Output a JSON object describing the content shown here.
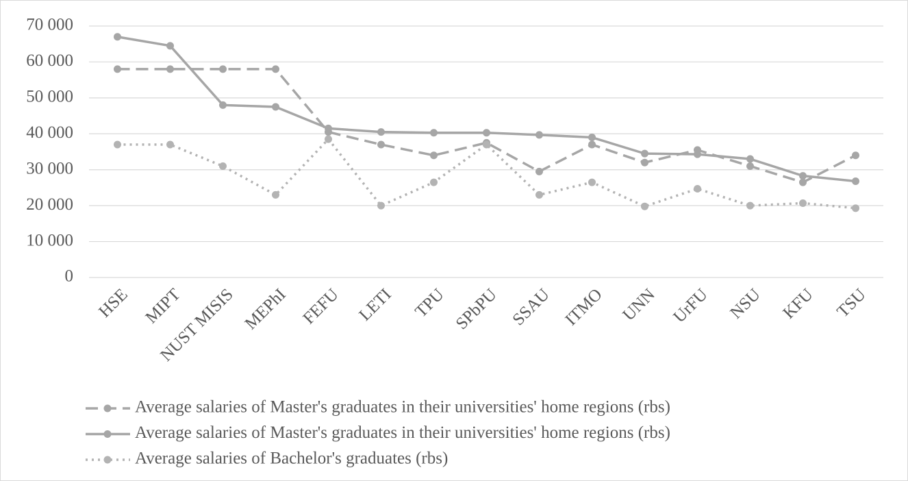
{
  "chart_data": {
    "type": "line",
    "categories": [
      "HSE",
      "MIPT",
      "NUST MISIS",
      "MEPhI",
      "FEFU",
      "LETI",
      "TPU",
      "SPbPU",
      "SSAU",
      "ITMO",
      "UNN",
      "UrFU",
      "NSU",
      "KFU",
      "TSU"
    ],
    "series": [
      {
        "name": "Average salaries of Master's graduates in their universities' home regions (rbs)",
        "color": "#a6a6a6",
        "dash": "dashed",
        "values": [
          58000,
          58000,
          58000,
          58000,
          40500,
          37000,
          34000,
          37500,
          29500,
          37000,
          32000,
          35500,
          31000,
          26500,
          34000
        ]
      },
      {
        "name": "Average salaries of Master's graduates in their universities' home regions (rbs)",
        "color": "#a6a6a6",
        "dash": "solid",
        "values": [
          67000,
          64500,
          48000,
          47500,
          41500,
          40500,
          40300,
          40300,
          39700,
          39000,
          34500,
          34300,
          33000,
          28300,
          26800
        ]
      },
      {
        "name": "Average salaries of Bachelor's graduates (rbs)",
        "color": "#b3b3b3",
        "dash": "dotted",
        "values": [
          37000,
          37000,
          31000,
          23000,
          38500,
          20000,
          26500,
          37000,
          23000,
          26500,
          19800,
          24700,
          20000,
          20700,
          19300
        ]
      }
    ],
    "ylim": [
      0,
      70000
    ],
    "yticks": [
      0,
      {
        "value": 10000,
        "label": "10 000"
      },
      {
        "value": 20000,
        "label": "20 000"
      },
      {
        "value": 30000,
        "label": "30 000"
      },
      {
        "value": 40000,
        "label": "40 000"
      },
      {
        "value": 50000,
        "label": "50 000"
      },
      {
        "value": 60000,
        "label": "60 000"
      },
      {
        "value": 70000,
        "label": "70 000"
      }
    ],
    "grid": true,
    "legend": "bottom"
  }
}
